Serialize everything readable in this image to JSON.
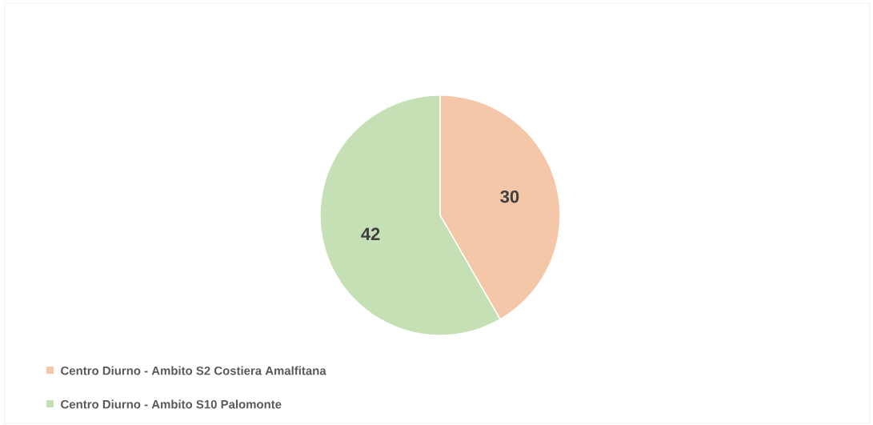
{
  "chart_data": {
    "type": "pie",
    "categories": [
      "Centro Diurno - Ambito S2 Costiera Amalfitana",
      "Centro Diurno - Ambito S10 Palomonte"
    ],
    "values": [
      30,
      42
    ],
    "colors": [
      "#f4c7a8",
      "#c5e0b4"
    ],
    "data_labels": true,
    "legend": "bottom"
  }
}
